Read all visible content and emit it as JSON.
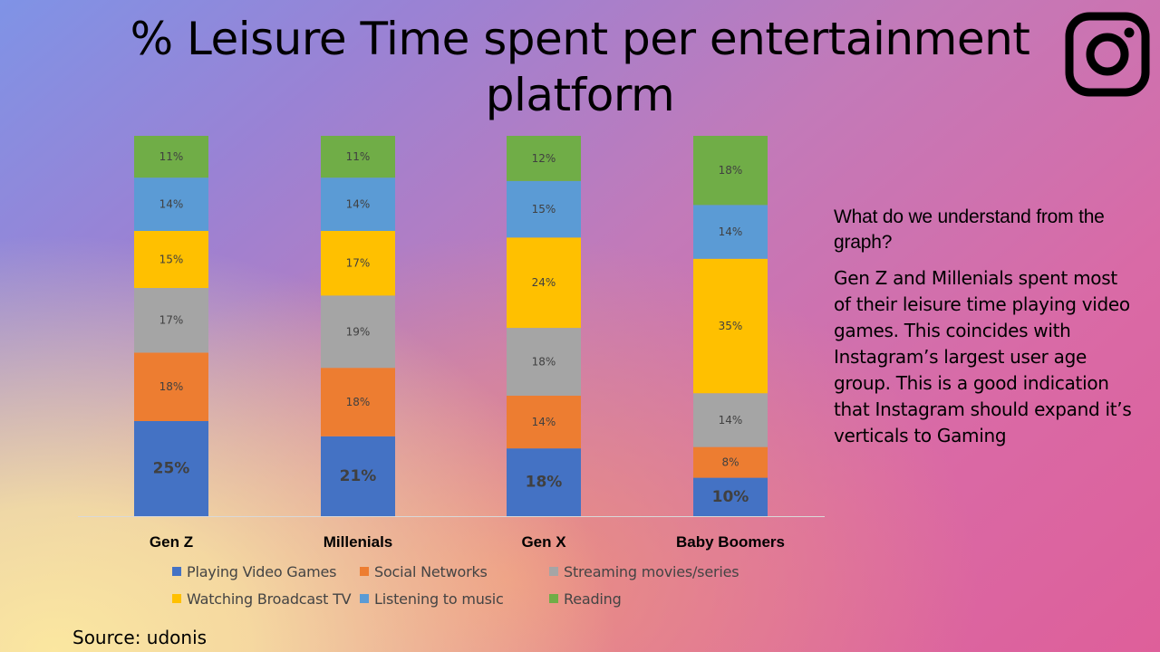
{
  "page": {
    "title": "% Leisure Time spent per entertainment platform",
    "source": "Source: udonis",
    "logo": {
      "icon": "instagram-icon"
    }
  },
  "insight": {
    "heading": "What do we understand from the graph?",
    "body": "Gen Z and Millenials spent most of their leisure time playing video games. This coincides with Instagram’s largest user age group. This is a good indication that Instagram should expand it’s verticals to Gaming"
  },
  "chart_data": {
    "type": "bar",
    "stacked": "100%",
    "title": "% Leisure Time spent per entertainment platform",
    "xlabel": "",
    "ylabel": "",
    "categories": [
      "Gen Z",
      "Millenials",
      "Gen X",
      "Baby Boomers"
    ],
    "series": [
      {
        "name": "Playing Video Games",
        "color": "#4472c4",
        "values": [
          25,
          21,
          18,
          10
        ],
        "labels": [
          "25%",
          "21%",
          "18%",
          "10%"
        ]
      },
      {
        "name": "Social Networks",
        "color": "#ed7d31",
        "values": [
          18,
          18,
          14,
          8
        ],
        "labels": [
          "18%",
          "18%",
          "14%",
          "8%"
        ]
      },
      {
        "name": "Streaming movies/series",
        "color": "#a5a5a5",
        "values": [
          17,
          19,
          18,
          14
        ],
        "labels": [
          "17%",
          "19%",
          "18%",
          "14%"
        ]
      },
      {
        "name": "Watching Broadcast TV",
        "color": "#ffc000",
        "values": [
          15,
          17,
          24,
          35
        ],
        "labels": [
          "15%",
          "17%",
          "24%",
          "35%"
        ]
      },
      {
        "name": "Listening to music",
        "color": "#5b9bd5",
        "values": [
          14,
          14,
          15,
          14
        ],
        "labels": [
          "14%",
          "14%",
          "15%",
          "14%"
        ]
      },
      {
        "name": "Reading",
        "color": "#70ad47",
        "values": [
          11,
          11,
          12,
          18
        ],
        "labels": [
          "11%",
          "11%",
          "12%",
          "18%"
        ]
      }
    ],
    "legend_position": "bottom",
    "grid": false
  }
}
